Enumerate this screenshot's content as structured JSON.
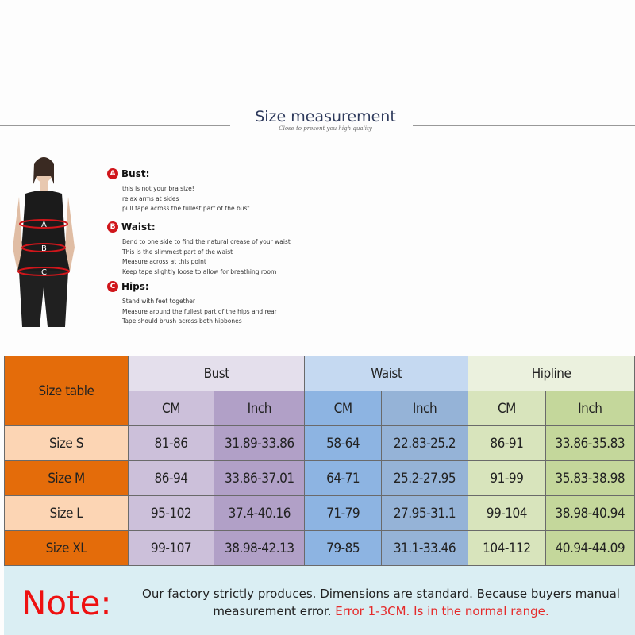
{
  "header": {
    "title": "Size measurement",
    "subtitle": "Close to present you high quality"
  },
  "guide": [
    {
      "badge": "A",
      "title": "Bust:",
      "lines": [
        "this is not your bra size!",
        "relax arms at sides",
        "pull tape across the fullest part of the bust"
      ]
    },
    {
      "badge": "B",
      "title": "Waist:",
      "lines": [
        "Bend  to one side to find the natural crease of your waist",
        "This is the slimmest part of the waist",
        "Measure across at this point",
        "Keep tape slightly loose to allow for breathing room"
      ]
    },
    {
      "badge": "C",
      "title": "Hips:",
      "lines": [
        "Stand with feet together",
        "Measure around the fullest part of the hips and rear",
        "Tape should brush across both hipbones"
      ]
    }
  ],
  "table": {
    "corner": "Size table",
    "groups": [
      "Bust",
      "Waist",
      "Hipline"
    ],
    "units": [
      "CM",
      "Inch",
      "CM",
      "Inch",
      "CM",
      "Inch"
    ],
    "rows": [
      {
        "size": "Size S",
        "values": [
          "81-86",
          "31.89-33.86",
          "58-64",
          "22.83-25.2",
          "86-91",
          "33.86-35.83"
        ]
      },
      {
        "size": "Size M",
        "values": [
          "86-94",
          "33.86-37.01",
          "64-71",
          "25.2-27.95",
          "91-99",
          "35.83-38.98"
        ]
      },
      {
        "size": "Size L",
        "values": [
          "95-102",
          "37.4-40.16",
          "71-79",
          "27.95-31.1",
          "99-104",
          "38.98-40.94"
        ]
      },
      {
        "size": "Size XL",
        "values": [
          "99-107",
          "38.98-42.13",
          "79-85",
          "31.1-33.46",
          "104-112",
          "40.94-44.09"
        ]
      }
    ]
  },
  "note": {
    "label": "Note:",
    "text": "Our factory strictly produces. Dimensions are standard. Because buyers manual measurement error.",
    "highlight": "Error 1-3CM. Is in the normal range."
  },
  "colors": {
    "orange": "#e46c0a",
    "light_orange": "#fcd5b4",
    "bust_head": "#e4dfec",
    "bust_cm": "#ccc0da",
    "bust_inch": "#b1a0c7",
    "waist_head": "#c5d9f1",
    "waist_cm": "#8db4e2",
    "waist_inch": "#95b3d7",
    "hip_head": "#ebf1de",
    "hip_cm": "#d8e4bc",
    "hip_inch": "#c4d79b",
    "note_bg": "#daeef3",
    "red": "#ee1111"
  }
}
